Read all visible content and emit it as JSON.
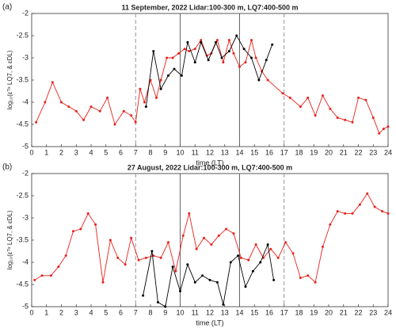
{
  "chart_data": [
    {
      "type": "line",
      "panel_label": "(a)",
      "title": "11 September, 2022  Lidar:100-300 m, LQ7:400-500 m",
      "x_label": "time (LT)",
      "y_label": "log₁₀(εᵀˢ LQ7, & εDL)",
      "xlim": [
        0,
        24
      ],
      "xticks": [
        0,
        1,
        2,
        3,
        4,
        5,
        6,
        7,
        8,
        9,
        10,
        11,
        12,
        13,
        14,
        15,
        16,
        17,
        18,
        19,
        20,
        21,
        22,
        23,
        24
      ],
      "ylim": [
        -5,
        -2
      ],
      "yticks": [
        -5,
        -4.5,
        -4,
        -3.5,
        -3,
        -2.5,
        -2
      ],
      "grid": false,
      "vlines": [
        {
          "x": 7,
          "dashed": true
        },
        {
          "x": 10,
          "dashed": false
        },
        {
          "x": 14,
          "dashed": false
        },
        {
          "x": 17,
          "dashed": true
        }
      ],
      "series": [
        {
          "color": "#e8211b",
          "x": [
            0.3,
            0.9,
            1.4,
            2,
            2.5,
            3,
            3.5,
            4,
            4.6,
            5.1,
            5.6,
            6.2,
            6.7,
            7,
            7.3,
            7.6,
            8,
            8.4,
            8.7,
            9.1,
            9.5,
            9.9,
            10.3,
            10.6,
            11,
            11.4,
            11.8,
            12.1,
            12.5,
            12.9,
            13.3,
            13.6,
            14,
            14.4,
            14.8,
            15.1,
            15.5,
            15.9,
            16.9,
            17.4,
            18.1,
            18.6,
            19.1,
            19.6,
            20.1,
            20.6,
            21.1,
            21.6,
            22,
            22.5,
            23,
            23.4,
            23.7,
            24
          ],
          "values": [
            -4.45,
            -4,
            -3.55,
            -4,
            -4.1,
            -4.2,
            -4.4,
            -4.1,
            -4.2,
            -3.9,
            -4.5,
            -4.2,
            -4.3,
            -4.45,
            -3.7,
            -4,
            -3.5,
            -3.9,
            -3.5,
            -3,
            -3,
            -2.9,
            -2.8,
            -2.85,
            -2.8,
            -2.6,
            -2.95,
            -2.9,
            -2.6,
            -3.1,
            -2.6,
            -2.9,
            -3.2,
            -3.1,
            -2.6,
            -3,
            -3.3,
            -3.5,
            -3.8,
            -3.9,
            -4.1,
            -3.9,
            -4.3,
            -3.85,
            -4.15,
            -4.35,
            -4.4,
            -4.45,
            -3.9,
            -3.95,
            -4.35,
            -4.7,
            -4.6,
            -4.55
          ]
        },
        {
          "color": "#000000",
          "x": [
            7.7,
            8.2,
            8.7,
            9.2,
            9.6,
            10.1,
            10.5,
            11,
            11.4,
            11.9,
            12.4,
            12.8,
            13.3,
            13.8,
            14.3,
            14.8,
            15.3,
            15.8,
            16.2
          ],
          "values": [
            -4.1,
            -2.85,
            -3.7,
            -3.4,
            -3.25,
            -3.4,
            -2.65,
            -3.1,
            -2.65,
            -3.05,
            -2.65,
            -3,
            -2.85,
            -2.5,
            -2.8,
            -3,
            -3.5,
            -3.05,
            -2.7
          ]
        }
      ]
    },
    {
      "type": "line",
      "panel_label": "(b)",
      "title": "27 August, 2022  Lidar:100-300 m, LQ7:400-500 m",
      "x_label": "time (LT)",
      "y_label": "log₁₀(εᵀˢ LQ7, & εDL)",
      "xlim": [
        0,
        24
      ],
      "xticks": [
        0,
        1,
        2,
        3,
        4,
        5,
        6,
        7,
        8,
        9,
        10,
        11,
        12,
        13,
        14,
        15,
        16,
        17,
        18,
        19,
        20,
        21,
        22,
        23,
        24
      ],
      "ylim": [
        -5,
        -2
      ],
      "yticks": [
        -5,
        -4.5,
        -4,
        -3.5,
        -3,
        -2.5,
        -2
      ],
      "grid": false,
      "vlines": [
        {
          "x": 7,
          "dashed": true
        },
        {
          "x": 10,
          "dashed": false
        },
        {
          "x": 14,
          "dashed": false
        },
        {
          "x": 17,
          "dashed": true
        }
      ],
      "series": [
        {
          "color": "#e8211b",
          "x": [
            0.2,
            0.7,
            1.3,
            1.8,
            2.3,
            2.8,
            3.3,
            3.8,
            4.3,
            4.8,
            5.3,
            5.8,
            6.3,
            6.7,
            7.2,
            7.7,
            8.2,
            8.7,
            9.2,
            9.7,
            10.2,
            10.6,
            11.1,
            11.6,
            12.1,
            12.6,
            13.1,
            13.6,
            14.1,
            14.6,
            15.1,
            15.6,
            16.1,
            16.6,
            17.1,
            17.6,
            18.1,
            18.6,
            19.1,
            19.6,
            20.1,
            20.6,
            21.1,
            21.6,
            22.1,
            22.6,
            23.1,
            23.6,
            24
          ],
          "values": [
            -4.4,
            -4.3,
            -4.3,
            -4.1,
            -3.85,
            -3.3,
            -3.25,
            -2.9,
            -3.15,
            -4.45,
            -3.5,
            -3.9,
            -4.05,
            -3.45,
            -3.95,
            -3.9,
            -3.85,
            -3.9,
            -3.55,
            -4.2,
            -3.4,
            -2.9,
            -3.7,
            -3.45,
            -3.6,
            -3.4,
            -3.25,
            -3.35,
            -3.9,
            -3.95,
            -3.6,
            -3.9,
            -3.7,
            -3.9,
            -3.55,
            -3.8,
            -4.35,
            -4.3,
            -4.45,
            -3.65,
            -3.15,
            -2.85,
            -2.9,
            -2.9,
            -2.7,
            -2.45,
            -2.75,
            -2.85,
            -2.9
          ]
        },
        {
          "color": "#000000",
          "x": [
            7.5,
            8.1,
            8.5,
            9,
            9.5,
            10,
            10.5,
            11,
            11.5,
            12,
            12.5,
            12.9,
            13.4,
            13.9,
            14.4,
            14.9,
            15.4,
            15.9,
            16.3
          ],
          "values": [
            -4.75,
            -3.75,
            -4.9,
            -5,
            -4.1,
            -4.65,
            -4.05,
            -4.45,
            -4.3,
            -4.4,
            -4.45,
            -4.95,
            -4,
            -3.85,
            -4.55,
            -4.2,
            -4,
            -3.6,
            -4.4
          ]
        }
      ]
    }
  ]
}
